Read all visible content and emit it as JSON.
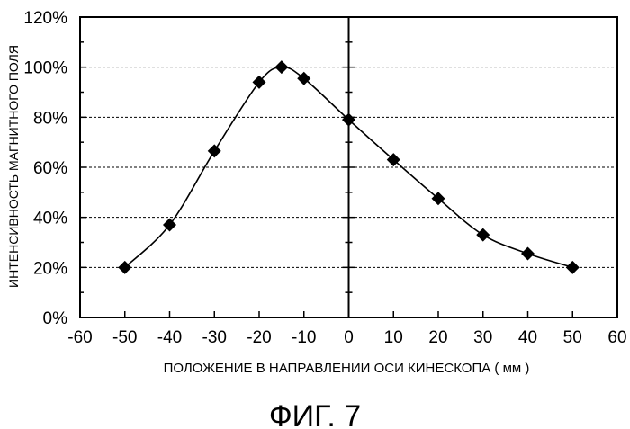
{
  "chart_data": {
    "type": "scatter",
    "xlabel": "ПОЛОЖЕНИЕ В НАПРАВЛЕНИИ ОСИ КИНЕСКОПА ( мм )",
    "ylabel": "ИНТЕНСИВНОСТЬ МАГНИТНОГО ПОЛЯ",
    "caption": "ФИГ. 7",
    "xlim": [
      -60,
      60
    ],
    "ylim": [
      0,
      120
    ],
    "xticks": [
      -60,
      -50,
      -40,
      -30,
      -20,
      -10,
      0,
      10,
      20,
      30,
      40,
      50,
      60
    ],
    "xtick_labels": [
      "-60",
      "-50",
      "-40",
      "-30",
      "-20",
      "-10",
      "0",
      "10",
      "20",
      "30",
      "40",
      "50",
      "60"
    ],
    "yticks": [
      0,
      20,
      40,
      60,
      80,
      100,
      120
    ],
    "ytick_labels": [
      "0%",
      "20%",
      "40%",
      "60%",
      "80%",
      "100%",
      "120%"
    ],
    "grid": "horizontal dashed",
    "marker": "diamond",
    "smooth_line": true,
    "line_color": "#000000",
    "marker_color": "#000000",
    "series": [
      {
        "x": [
          -50,
          -40,
          -30,
          -20,
          -15,
          -10,
          0,
          10,
          20,
          30,
          40,
          50
        ],
        "y": [
          20,
          37,
          66.5,
          94,
          100,
          95.5,
          79,
          63,
          47.5,
          33,
          25.5,
          20
        ]
      }
    ]
  }
}
